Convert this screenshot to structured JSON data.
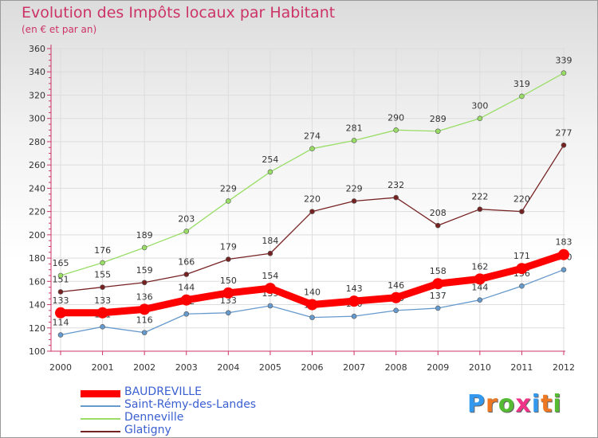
{
  "header": {
    "title": "Evolution des Impôts locaux par Habitant",
    "subtitle": "(en € et par an)"
  },
  "chart_data": {
    "type": "line",
    "title": "Evolution des Impôts locaux par Habitant",
    "subtitle": "(en € et par an)",
    "xlabel": "",
    "ylabel": "",
    "x": [
      "2000",
      "2001",
      "2002",
      "2003",
      "2004",
      "2005",
      "2006",
      "2007",
      "2008",
      "2009",
      "2010",
      "2011",
      "2012"
    ],
    "ylim": [
      100,
      360
    ],
    "yticks": [
      100,
      120,
      140,
      160,
      180,
      200,
      220,
      240,
      260,
      280,
      300,
      320,
      340,
      360
    ],
    "grid": true,
    "legend_position": "bottom-left",
    "series": [
      {
        "name": "BAUDREVILLE",
        "color": "#ff0000",
        "values": [
          133,
          133,
          136,
          144,
          150,
          154,
          140,
          143,
          146,
          158,
          162,
          171,
          183
        ]
      },
      {
        "name": "Saint-Rémy-des-Landes",
        "color": "#6699cc",
        "values": [
          114,
          121,
          116,
          132,
          133,
          139,
          129,
          130,
          135,
          137,
          144,
          156,
          170
        ]
      },
      {
        "name": "Denneville",
        "color": "#99dd66",
        "values": [
          165,
          176,
          189,
          203,
          229,
          254,
          274,
          281,
          290,
          289,
          300,
          319,
          339
        ]
      },
      {
        "name": "Glatigny",
        "color": "#772222",
        "values": [
          151,
          155,
          159,
          166,
          179,
          184,
          220,
          229,
          232,
          208,
          222,
          220,
          277
        ]
      }
    ]
  },
  "logo": {
    "letters": [
      "P",
      "r",
      "o",
      "x",
      "i",
      "t",
      "i"
    ],
    "colors": [
      "#3399ee",
      "#ee7722",
      "#55bb33",
      "#ee3388",
      "#3399ee",
      "#ee7722",
      "#55bb33"
    ]
  }
}
